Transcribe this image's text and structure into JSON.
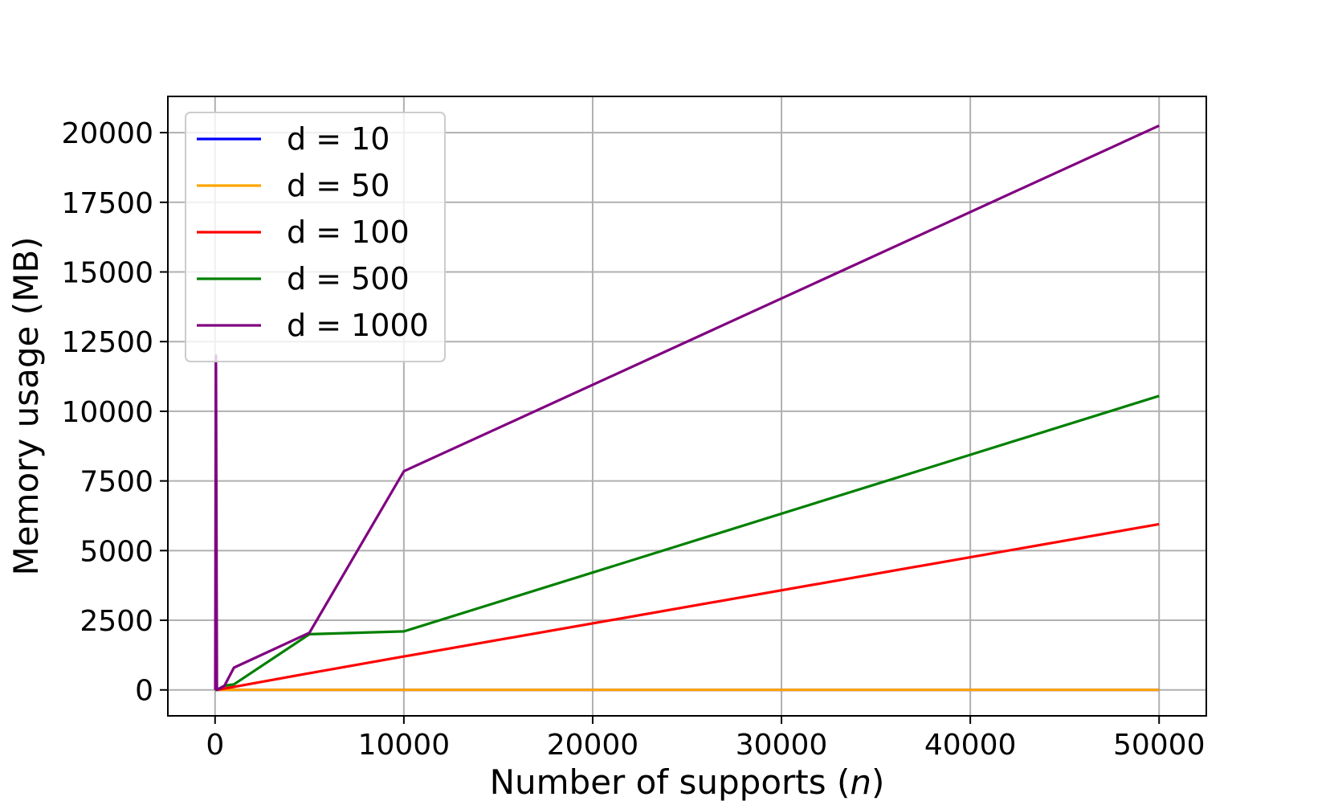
{
  "chart_data": {
    "type": "line",
    "title": "",
    "xlabel": "Number of supports (",
    "xlabel_var": "n",
    "xlabel_end": ")",
    "ylabel": "Memory usage (MB)",
    "xlim": [
      -2500,
      52500
    ],
    "ylim": [
      -930,
      21300
    ],
    "xticks": [
      0,
      10000,
      20000,
      30000,
      40000,
      50000
    ],
    "xtick_labels": [
      "0",
      "10000",
      "20000",
      "30000",
      "40000",
      "50000"
    ],
    "yticks": [
      0,
      2500,
      5000,
      7500,
      10000,
      12500,
      15000,
      17500,
      20000
    ],
    "ytick_labels": [
      "0",
      "2500",
      "5000",
      "7500",
      "10000",
      "12500",
      "15000",
      "17500",
      "20000"
    ],
    "grid": true,
    "legend_position": "top-left",
    "series": [
      {
        "name": "d = 10",
        "color": "#0000ff",
        "x": [
          10,
          50,
          100,
          500,
          1000,
          5000,
          10000,
          50000
        ],
        "y": [
          0,
          0,
          0,
          0,
          0,
          0,
          0,
          0
        ]
      },
      {
        "name": "d = 50",
        "color": "#ffa500",
        "x": [
          10,
          50,
          100,
          500,
          1000,
          5000,
          10000,
          50000
        ],
        "y": [
          0,
          0,
          0,
          0,
          0,
          0,
          0,
          0
        ]
      },
      {
        "name": "d = 100",
        "color": "#ff0000",
        "x": [
          10,
          50,
          100,
          500,
          1000,
          5000,
          10000,
          50000
        ],
        "y": [
          0,
          0,
          0,
          50,
          110,
          600,
          1200,
          5950
        ]
      },
      {
        "name": "d = 500",
        "color": "#008000",
        "x": [
          10,
          50,
          100,
          500,
          1000,
          5000,
          10000,
          50000
        ],
        "y": [
          0,
          0,
          0,
          150,
          200,
          2000,
          2100,
          10550
        ]
      },
      {
        "name": "d = 1000",
        "color": "#800080",
        "x": [
          10,
          50,
          100,
          500,
          1000,
          5000,
          10000,
          50000
        ],
        "y": [
          0,
          12000,
          0,
          150,
          800,
          2050,
          7850,
          20250
        ]
      }
    ]
  }
}
